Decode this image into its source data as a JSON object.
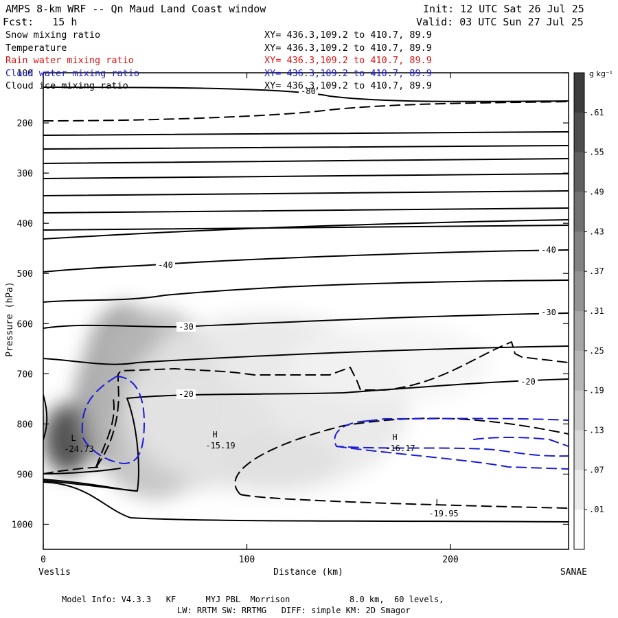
{
  "header": {
    "title": "AMPS 8-km WRF -- Qn Maud Land Coast window",
    "init": "Init: 12 UTC Sat 26 Jul 25",
    "fcst": "Fcst:   15 h",
    "valid": "Valid: 03 UTC Sun 27 Jul 25"
  },
  "fields": [
    {
      "name": "Snow mixing ratio",
      "xy": "XY= 436.3,109.2 to 410.7, 89.9",
      "color": "#000000"
    },
    {
      "name": "Temperature",
      "xy": "XY= 436.3,109.2 to 410.7, 89.9",
      "color": "#000000"
    },
    {
      "name": "Rain water mixing ratio",
      "xy": "XY= 436.3,109.2 to 410.7, 89.9",
      "color": "#e01010"
    },
    {
      "name": "Cloud water mixing ratio",
      "xy": "XY= 436.3,109.2 to 410.7, 89.9",
      "color": "#1818d8"
    },
    {
      "name": "Cloud ice mixing ratio",
      "xy": "XY= 436.3,109.2 to 410.7, 89.9",
      "color": "#000000"
    }
  ],
  "footer": {
    "line1": "Model Info: V4.3.3   KF      MYJ PBL  Morrison            8.0 km,  60 levels,",
    "line2": "LW: RRTM SW: RRTMG   DIFF: simple KM: 2D Smagor"
  },
  "chart_data": {
    "type": "heatmap",
    "title": "",
    "xlabel": "Distance (km)",
    "ylabel": "Pressure (hPa)",
    "xlim": [
      0,
      258
    ],
    "ylim": [
      1050,
      100
    ],
    "x_ticks": [
      0,
      100,
      200
    ],
    "y_ticks": [
      1000,
      900,
      800,
      700,
      600,
      500,
      400,
      300,
      200,
      100
    ],
    "x_end_labels": {
      "left": "Veslis",
      "right": "SANAE"
    },
    "colorbar": {
      "unit": "g kg⁻¹",
      "ticks": [
        ".61",
        ".55",
        ".49",
        ".43",
        ".37",
        ".31",
        ".25",
        ".19",
        ".13",
        ".07",
        ".01"
      ]
    },
    "temperature_contour_labels": [
      "-80",
      "-40",
      "-40",
      "-30",
      "-30",
      "-20",
      "-20"
    ],
    "extrema_labels": [
      {
        "type": "L",
        "value": "-24.73"
      },
      {
        "type": "H",
        "value": "-15.19"
      },
      {
        "type": "H",
        "value": "-16.17"
      },
      {
        "type": "L",
        "value": "-19.95"
      }
    ],
    "snow_blobs": [
      {
        "x": 12,
        "p": 830,
        "rx": 12,
        "rp": 70,
        "level": 0.64
      },
      {
        "x": 30,
        "p": 760,
        "rx": 14,
        "rp": 120,
        "level": 0.5
      },
      {
        "x": 40,
        "p": 700,
        "rx": 20,
        "rp": 140,
        "level": 0.36
      },
      {
        "x": 55,
        "p": 760,
        "rx": 35,
        "rp": 190,
        "level": 0.22
      },
      {
        "x": 75,
        "p": 820,
        "rx": 40,
        "rp": 110,
        "level": 0.16
      },
      {
        "x": 115,
        "p": 870,
        "rx": 30,
        "rp": 55,
        "level": 0.2
      },
      {
        "x": 110,
        "p": 760,
        "rx": 70,
        "rp": 180,
        "level": 0.08
      },
      {
        "x": 170,
        "p": 680,
        "rx": 50,
        "rp": 80,
        "level": 0.04
      }
    ]
  }
}
